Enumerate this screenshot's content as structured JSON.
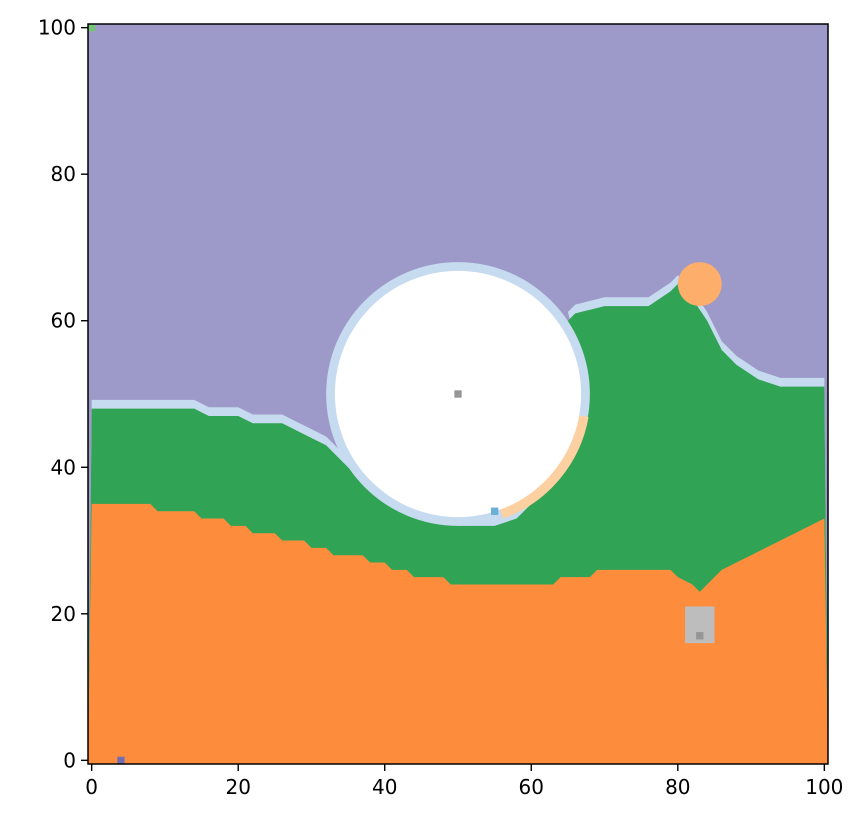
{
  "chart_data": {
    "type": "heatmap",
    "xlim": [
      -0.5,
      100.5
    ],
    "ylim": [
      -0.5,
      100.5
    ],
    "x_ticks": [
      0,
      20,
      40,
      60,
      80,
      100
    ],
    "y_ticks": [
      0,
      20,
      40,
      60,
      80,
      100
    ],
    "x_tick_labels": [
      "0",
      "20",
      "40",
      "60",
      "80",
      "100"
    ],
    "y_tick_labels": [
      "0",
      "20",
      "40",
      "60",
      "80",
      "100"
    ],
    "grid": false,
    "colors": {
      "sky": "#9d99c8",
      "halo": "#c6dbef",
      "grass": "#31a354",
      "ground": "#fd8d3c",
      "disc": "#ffffff",
      "ring": "#fdd0a2",
      "blob": "#fdae6b",
      "block": "#bdbdbd",
      "dot": "#969696",
      "speck": "#6baed6",
      "corner_speck": "#756bb1",
      "corner_green": "#74c476"
    },
    "regions": {
      "ground_top": [
        [
          0,
          35
        ],
        [
          8,
          35
        ],
        [
          9,
          34
        ],
        [
          14,
          34
        ],
        [
          15,
          33
        ],
        [
          18,
          33
        ],
        [
          19,
          32
        ],
        [
          21,
          32
        ],
        [
          22,
          31
        ],
        [
          25,
          31
        ],
        [
          26,
          30
        ],
        [
          29,
          30
        ],
        [
          30,
          29
        ],
        [
          32,
          29
        ],
        [
          33,
          28
        ],
        [
          37,
          28
        ],
        [
          38,
          27
        ],
        [
          40,
          27
        ],
        [
          41,
          26
        ],
        [
          43,
          26
        ],
        [
          44,
          25
        ],
        [
          48,
          25
        ],
        [
          49,
          24
        ],
        [
          58,
          24
        ],
        [
          59,
          24
        ],
        [
          63,
          24
        ],
        [
          64,
          25
        ],
        [
          68,
          25
        ],
        [
          69,
          26
        ],
        [
          79,
          26
        ],
        [
          80,
          25
        ],
        [
          82,
          24
        ],
        [
          83,
          23
        ],
        [
          85,
          25
        ],
        [
          86,
          26
        ],
        [
          88,
          27
        ],
        [
          90,
          28
        ],
        [
          92,
          29
        ],
        [
          94,
          30
        ],
        [
          96,
          31
        ],
        [
          98,
          32
        ],
        [
          100,
          33
        ]
      ],
      "grass_top": [
        [
          0,
          48
        ],
        [
          14,
          48
        ],
        [
          16,
          47
        ],
        [
          20,
          47
        ],
        [
          22,
          46
        ],
        [
          26,
          46
        ],
        [
          28,
          45
        ],
        [
          30,
          44
        ],
        [
          32,
          43
        ],
        [
          34,
          41
        ],
        [
          36,
          39
        ],
        [
          38,
          37
        ],
        [
          40,
          36
        ],
        [
          42,
          35
        ],
        [
          44,
          34
        ],
        [
          46,
          33
        ],
        [
          50,
          32
        ],
        [
          55,
          32
        ],
        [
          58,
          33
        ],
        [
          60,
          35
        ],
        [
          62,
          37
        ],
        [
          64,
          40
        ],
        [
          66,
          43
        ],
        [
          67,
          50
        ],
        [
          66,
          56
        ],
        [
          65,
          60
        ],
        [
          66,
          61
        ],
        [
          70,
          62
        ],
        [
          76,
          62
        ],
        [
          79,
          64
        ],
        [
          80,
          65
        ],
        [
          82,
          63
        ],
        [
          84,
          60
        ],
        [
          86,
          56
        ],
        [
          88,
          54
        ],
        [
          91,
          52
        ],
        [
          94,
          51
        ],
        [
          100,
          51
        ]
      ],
      "halo_width": 1.2,
      "disc_center": [
        50,
        50
      ],
      "disc_radius": 16.8,
      "ring_arc_deg": [
        290,
        350
      ],
      "blob_center": [
        83,
        65
      ],
      "blob_radius": 3,
      "block_x": [
        81,
        85
      ],
      "block_y": [
        16,
        21
      ],
      "dots": [
        [
          50,
          50
        ],
        [
          83,
          17
        ]
      ],
      "specks": [
        [
          55,
          34
        ]
      ],
      "corner_speck": [
        4,
        0
      ],
      "corner_green": [
        0,
        100
      ]
    }
  }
}
